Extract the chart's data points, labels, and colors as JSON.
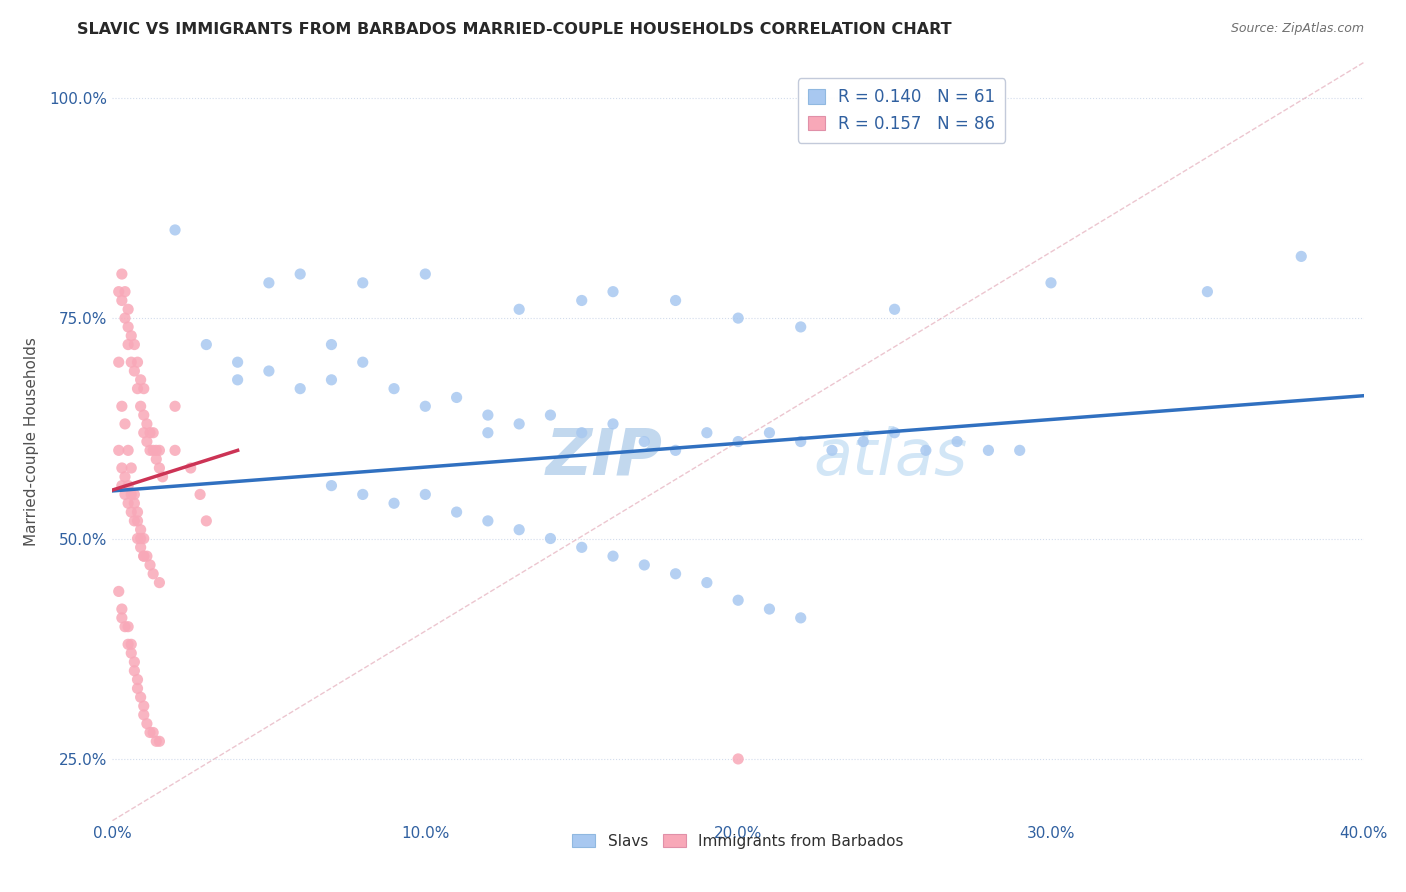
{
  "title": "SLAVIC VS IMMIGRANTS FROM BARBADOS MARRIED-COUPLE HOUSEHOLDS CORRELATION CHART",
  "source": "Source: ZipAtlas.com",
  "ylabel": "Married-couple Households",
  "xmin": 0.0,
  "xmax": 0.4,
  "ymin": 0.18,
  "ymax": 1.04,
  "slavs_R": 0.14,
  "slavs_N": 61,
  "barbados_R": 0.157,
  "barbados_N": 86,
  "slavs_color": "#a8c8f0",
  "barbados_color": "#f8a8b8",
  "trend_slavs_color": "#3070c0",
  "trend_barbados_color": "#cc3355",
  "slavs_scatter_x": [
    0.02,
    0.05,
    0.06,
    0.08,
    0.1,
    0.13,
    0.15,
    0.16,
    0.18,
    0.2,
    0.22,
    0.25,
    0.3,
    0.35,
    0.38,
    0.03,
    0.04,
    0.04,
    0.05,
    0.06,
    0.07,
    0.07,
    0.08,
    0.09,
    0.1,
    0.11,
    0.12,
    0.12,
    0.13,
    0.14,
    0.15,
    0.16,
    0.17,
    0.18,
    0.19,
    0.2,
    0.21,
    0.22,
    0.23,
    0.24,
    0.25,
    0.26,
    0.27,
    0.28,
    0.29,
    0.07,
    0.08,
    0.09,
    0.1,
    0.11,
    0.12,
    0.13,
    0.14,
    0.15,
    0.16,
    0.17,
    0.18,
    0.19,
    0.2,
    0.21,
    0.22
  ],
  "slavs_scatter_y": [
    0.85,
    0.79,
    0.8,
    0.79,
    0.8,
    0.76,
    0.77,
    0.78,
    0.77,
    0.75,
    0.74,
    0.76,
    0.79,
    0.78,
    0.82,
    0.72,
    0.7,
    0.68,
    0.69,
    0.67,
    0.72,
    0.68,
    0.7,
    0.67,
    0.65,
    0.66,
    0.64,
    0.62,
    0.63,
    0.64,
    0.62,
    0.63,
    0.61,
    0.6,
    0.62,
    0.61,
    0.62,
    0.61,
    0.6,
    0.61,
    0.62,
    0.6,
    0.61,
    0.6,
    0.6,
    0.56,
    0.55,
    0.54,
    0.55,
    0.53,
    0.52,
    0.51,
    0.5,
    0.49,
    0.48,
    0.47,
    0.46,
    0.45,
    0.43,
    0.42,
    0.41
  ],
  "barbados_scatter_x": [
    0.002,
    0.003,
    0.003,
    0.004,
    0.004,
    0.005,
    0.005,
    0.005,
    0.006,
    0.006,
    0.007,
    0.007,
    0.008,
    0.008,
    0.009,
    0.009,
    0.01,
    0.01,
    0.01,
    0.011,
    0.011,
    0.012,
    0.012,
    0.013,
    0.013,
    0.014,
    0.014,
    0.015,
    0.015,
    0.016,
    0.002,
    0.003,
    0.003,
    0.004,
    0.004,
    0.005,
    0.005,
    0.006,
    0.006,
    0.007,
    0.007,
    0.008,
    0.008,
    0.009,
    0.009,
    0.01,
    0.01,
    0.011,
    0.012,
    0.013,
    0.002,
    0.003,
    0.003,
    0.004,
    0.005,
    0.005,
    0.006,
    0.006,
    0.007,
    0.007,
    0.008,
    0.008,
    0.009,
    0.01,
    0.01,
    0.011,
    0.012,
    0.013,
    0.014,
    0.015,
    0.002,
    0.003,
    0.004,
    0.005,
    0.006,
    0.007,
    0.008,
    0.009,
    0.01,
    0.015,
    0.02,
    0.02,
    0.025,
    0.028,
    0.03,
    0.2
  ],
  "barbados_scatter_y": [
    0.78,
    0.77,
    0.8,
    0.75,
    0.78,
    0.76,
    0.72,
    0.74,
    0.73,
    0.7,
    0.72,
    0.69,
    0.7,
    0.67,
    0.68,
    0.65,
    0.67,
    0.64,
    0.62,
    0.63,
    0.61,
    0.62,
    0.6,
    0.6,
    0.62,
    0.6,
    0.59,
    0.6,
    0.58,
    0.57,
    0.6,
    0.58,
    0.56,
    0.57,
    0.55,
    0.56,
    0.54,
    0.55,
    0.53,
    0.54,
    0.52,
    0.52,
    0.5,
    0.51,
    0.49,
    0.5,
    0.48,
    0.48,
    0.47,
    0.46,
    0.44,
    0.42,
    0.41,
    0.4,
    0.4,
    0.38,
    0.38,
    0.37,
    0.36,
    0.35,
    0.34,
    0.33,
    0.32,
    0.31,
    0.3,
    0.29,
    0.28,
    0.28,
    0.27,
    0.27,
    0.7,
    0.65,
    0.63,
    0.6,
    0.58,
    0.55,
    0.53,
    0.5,
    0.48,
    0.45,
    0.65,
    0.6,
    0.58,
    0.55,
    0.52,
    0.25
  ],
  "watermark_zip": "ZIP",
  "watermark_atlas": "atlas",
  "yticks": [
    0.25,
    0.5,
    0.75,
    1.0
  ],
  "ytick_labels": [
    "25.0%",
    "50.0%",
    "75.0%",
    "100.0%"
  ],
  "xticks": [
    0.0,
    0.1,
    0.2,
    0.3,
    0.4
  ],
  "xtick_labels": [
    "0.0%",
    "10.0%",
    "20.0%",
    "30.0%",
    "40.0%"
  ],
  "trend_slavs_x0": 0.0,
  "trend_slavs_x1": 0.4,
  "trend_slavs_y0": 0.554,
  "trend_slavs_y1": 0.662,
  "trend_barbados_x0": 0.0,
  "trend_barbados_x1": 0.04,
  "trend_barbados_y0": 0.555,
  "trend_barbados_y1": 0.6
}
